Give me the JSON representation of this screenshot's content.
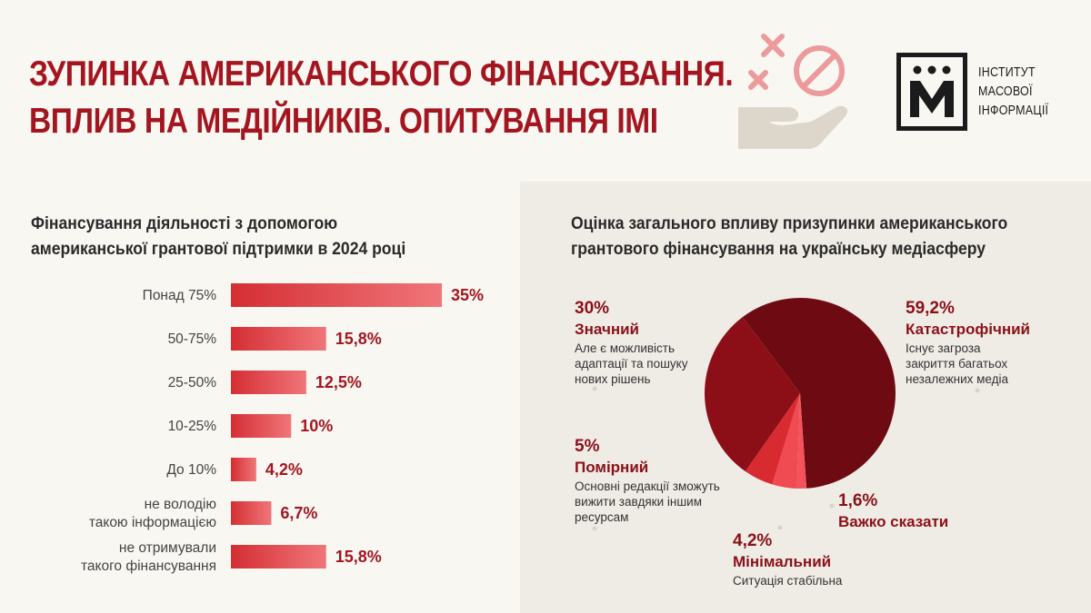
{
  "header": {
    "title_line1": "ЗУПИНКА АМЕРИКАНСЬКОГО ФІНАНСУВАННЯ.",
    "title_line2": "ВПЛИВ НА МЕДІЙНИКІВ. ОПИТУВАННЯ ІМІ",
    "illustration_icon": "hand-with-crosses-and-prohibition-icon"
  },
  "logo": {
    "mark": "М",
    "line1": "ІНСТИТУТ",
    "line2": "МАСОВОЇ",
    "line3": "ІНФОРМАЦІЇ"
  },
  "colors": {
    "accent": "#a31620",
    "bar_gradient_start": "#d42e34",
    "bar_gradient_end": "#f07679",
    "pie_dark": "#6e0a12",
    "pie_mid": "#8c0f18",
    "pie_light": "#ef3b44",
    "panel": "#efebe5",
    "background": "#f9f7f2"
  },
  "chart_data": [
    {
      "type": "bar",
      "orientation": "horizontal",
      "title": [
        "Фінансування діяльності з допомогою",
        "американської грантової підтримки в 2024 році"
      ],
      "categories": [
        [
          "Понад 75%"
        ],
        [
          "50-75%"
        ],
        [
          "25-50%"
        ],
        [
          "10-25%"
        ],
        [
          "До 10%"
        ],
        [
          "не володію",
          "такою інформацією"
        ],
        [
          "не отримували",
          "такого фінансування"
        ]
      ],
      "values": [
        35,
        15.8,
        12.5,
        10,
        4.2,
        6.7,
        15.8
      ],
      "value_labels": [
        "35%",
        "15,8%",
        "12,5%",
        "10%",
        "4,2%",
        "6,7%",
        "15,8%"
      ],
      "xlim": [
        0,
        35
      ],
      "grid": false
    },
    {
      "type": "pie",
      "title": [
        "Оцінка загального впливу призупинки американського",
        "грантового фінансування на українську медіасферу"
      ],
      "slices": [
        {
          "label": "Катастрофічний",
          "pct": "59,2%",
          "value": 59.2,
          "desc": [
            "Існує загроза",
            "закриття багатьох",
            "незалежних медіа"
          ]
        },
        {
          "label": "Важко сказати",
          "pct": "1,6%",
          "value": 1.6,
          "desc": []
        },
        {
          "label": "Мінімальний",
          "pct": "4,2%",
          "value": 4.2,
          "desc": [
            "Ситуація стабільна"
          ]
        },
        {
          "label": "Помірний",
          "pct": "5%",
          "value": 5,
          "desc": [
            "Основні редакції зможуть",
            "вижити завдяки іншим",
            "ресурсам"
          ]
        },
        {
          "label": "Значний",
          "pct": "30%",
          "value": 30,
          "desc": [
            "Але є можливість",
            "адаптації та пошуку",
            "нових рішень"
          ]
        }
      ]
    }
  ]
}
